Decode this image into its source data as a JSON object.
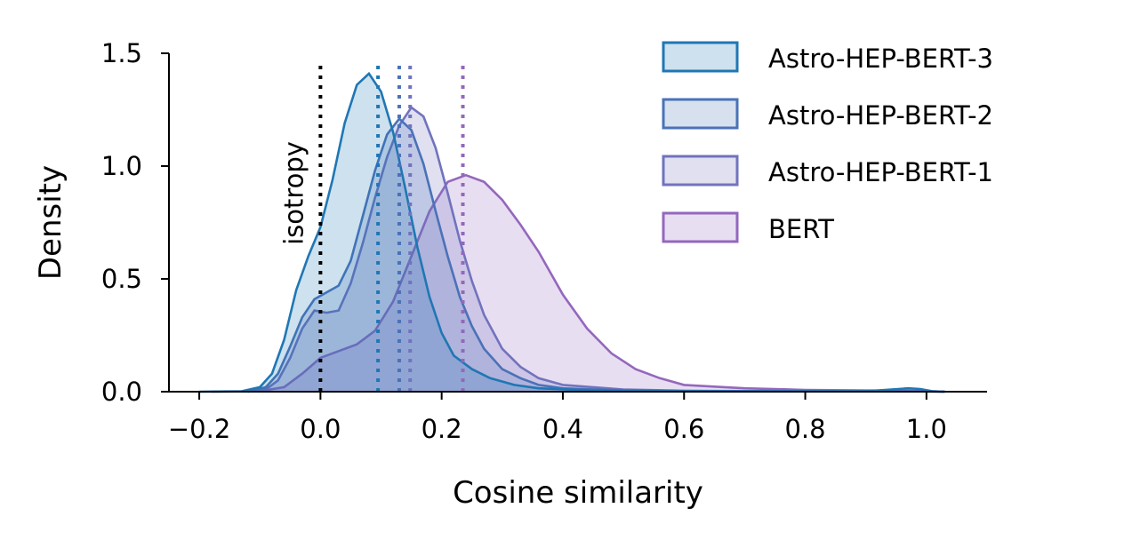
{
  "chart_data": {
    "type": "area",
    "xlabel": "Cosine similarity",
    "ylabel": "Density",
    "xlim": [
      -0.25,
      1.1
    ],
    "ylim": [
      0,
      1.5
    ],
    "xticks": [
      -0.2,
      0.0,
      0.2,
      0.4,
      0.6,
      0.8,
      1.0
    ],
    "xtick_labels": [
      "−0.2",
      "0.0",
      "0.2",
      "0.4",
      "0.6",
      "0.8",
      "1.0"
    ],
    "yticks": [
      0.0,
      0.5,
      1.0,
      1.5
    ],
    "ytick_labels": [
      "0.0",
      "0.5",
      "1.0",
      "1.5"
    ],
    "legend_position": "top-right",
    "grid": false,
    "isotropy_line": {
      "x": 0.0,
      "label": "isotropy",
      "color": "#000000"
    },
    "series": [
      {
        "name": "BERT",
        "color": "#9467bd",
        "mean": 0.235,
        "points": [
          [
            -0.18,
            0
          ],
          [
            -0.1,
            0.002
          ],
          [
            -0.06,
            0.02
          ],
          [
            -0.03,
            0.08
          ],
          [
            0.0,
            0.15
          ],
          [
            0.03,
            0.18
          ],
          [
            0.06,
            0.21
          ],
          [
            0.09,
            0.27
          ],
          [
            0.12,
            0.4
          ],
          [
            0.15,
            0.6
          ],
          [
            0.18,
            0.8
          ],
          [
            0.21,
            0.93
          ],
          [
            0.24,
            0.96
          ],
          [
            0.27,
            0.93
          ],
          [
            0.3,
            0.85
          ],
          [
            0.33,
            0.74
          ],
          [
            0.36,
            0.62
          ],
          [
            0.4,
            0.43
          ],
          [
            0.44,
            0.28
          ],
          [
            0.48,
            0.17
          ],
          [
            0.52,
            0.1
          ],
          [
            0.56,
            0.06
          ],
          [
            0.6,
            0.03
          ],
          [
            0.7,
            0.015
          ],
          [
            0.8,
            0.008
          ],
          [
            1.0,
            0.003
          ],
          [
            1.03,
            0
          ]
        ]
      },
      {
        "name": "Astro-HEP-BERT-1",
        "color": "#7173be",
        "mean": 0.148,
        "points": [
          [
            -0.12,
            0
          ],
          [
            -0.09,
            0.01
          ],
          [
            -0.07,
            0.05
          ],
          [
            -0.05,
            0.15
          ],
          [
            -0.03,
            0.28
          ],
          [
            -0.01,
            0.36
          ],
          [
            0.01,
            0.35
          ],
          [
            0.03,
            0.36
          ],
          [
            0.05,
            0.48
          ],
          [
            0.07,
            0.66
          ],
          [
            0.09,
            0.86
          ],
          [
            0.11,
            1.04
          ],
          [
            0.13,
            1.18
          ],
          [
            0.15,
            1.26
          ],
          [
            0.17,
            1.22
          ],
          [
            0.19,
            1.08
          ],
          [
            0.21,
            0.88
          ],
          [
            0.23,
            0.67
          ],
          [
            0.25,
            0.49
          ],
          [
            0.27,
            0.34
          ],
          [
            0.3,
            0.19
          ],
          [
            0.33,
            0.11
          ],
          [
            0.36,
            0.06
          ],
          [
            0.4,
            0.03
          ],
          [
            0.5,
            0.01
          ],
          [
            0.6,
            0.004
          ],
          [
            0.8,
            0.002
          ],
          [
            1.0,
            0.001
          ],
          [
            1.03,
            0
          ]
        ]
      },
      {
        "name": "Astro-HEP-BERT-2",
        "color": "#4a72b8",
        "mean": 0.13,
        "points": [
          [
            -0.12,
            0
          ],
          [
            -0.09,
            0.02
          ],
          [
            -0.07,
            0.08
          ],
          [
            -0.05,
            0.2
          ],
          [
            -0.03,
            0.33
          ],
          [
            -0.01,
            0.41
          ],
          [
            0.01,
            0.44
          ],
          [
            0.03,
            0.47
          ],
          [
            0.05,
            0.58
          ],
          [
            0.07,
            0.78
          ],
          [
            0.09,
            0.98
          ],
          [
            0.11,
            1.14
          ],
          [
            0.13,
            1.21
          ],
          [
            0.15,
            1.16
          ],
          [
            0.17,
            1.01
          ],
          [
            0.19,
            0.8
          ],
          [
            0.21,
            0.6
          ],
          [
            0.23,
            0.42
          ],
          [
            0.25,
            0.29
          ],
          [
            0.27,
            0.19
          ],
          [
            0.3,
            0.1
          ],
          [
            0.33,
            0.06
          ],
          [
            0.36,
            0.03
          ],
          [
            0.4,
            0.015
          ],
          [
            0.5,
            0.005
          ],
          [
            0.7,
            0.002
          ],
          [
            1.0,
            0.001
          ],
          [
            1.03,
            0
          ]
        ]
      },
      {
        "name": "Astro-HEP-BERT-3",
        "color": "#1f77b4",
        "mean": 0.095,
        "points": [
          [
            -0.2,
            0
          ],
          [
            -0.13,
            0.002
          ],
          [
            -0.1,
            0.02
          ],
          [
            -0.08,
            0.08
          ],
          [
            -0.06,
            0.23
          ],
          [
            -0.04,
            0.45
          ],
          [
            -0.02,
            0.6
          ],
          [
            0.0,
            0.73
          ],
          [
            0.02,
            0.94
          ],
          [
            0.04,
            1.19
          ],
          [
            0.06,
            1.36
          ],
          [
            0.08,
            1.41
          ],
          [
            0.1,
            1.33
          ],
          [
            0.12,
            1.15
          ],
          [
            0.14,
            0.9
          ],
          [
            0.16,
            0.64
          ],
          [
            0.18,
            0.42
          ],
          [
            0.2,
            0.26
          ],
          [
            0.22,
            0.16
          ],
          [
            0.25,
            0.1
          ],
          [
            0.28,
            0.06
          ],
          [
            0.32,
            0.03
          ],
          [
            0.36,
            0.015
          ],
          [
            0.45,
            0.005
          ],
          [
            0.6,
            0.002
          ],
          [
            0.9,
            0.002
          ],
          [
            0.97,
            0.015
          ],
          [
            0.99,
            0.012
          ],
          [
            1.01,
            0.002
          ],
          [
            1.03,
            0
          ]
        ]
      }
    ],
    "legend": [
      {
        "label": "Astro-HEP-BERT-3",
        "color": "#1f77b4"
      },
      {
        "label": "Astro-HEP-BERT-2",
        "color": "#4a72b8"
      },
      {
        "label": "Astro-HEP-BERT-1",
        "color": "#7173be"
      },
      {
        "label": "BERT",
        "color": "#9467bd"
      }
    ]
  }
}
